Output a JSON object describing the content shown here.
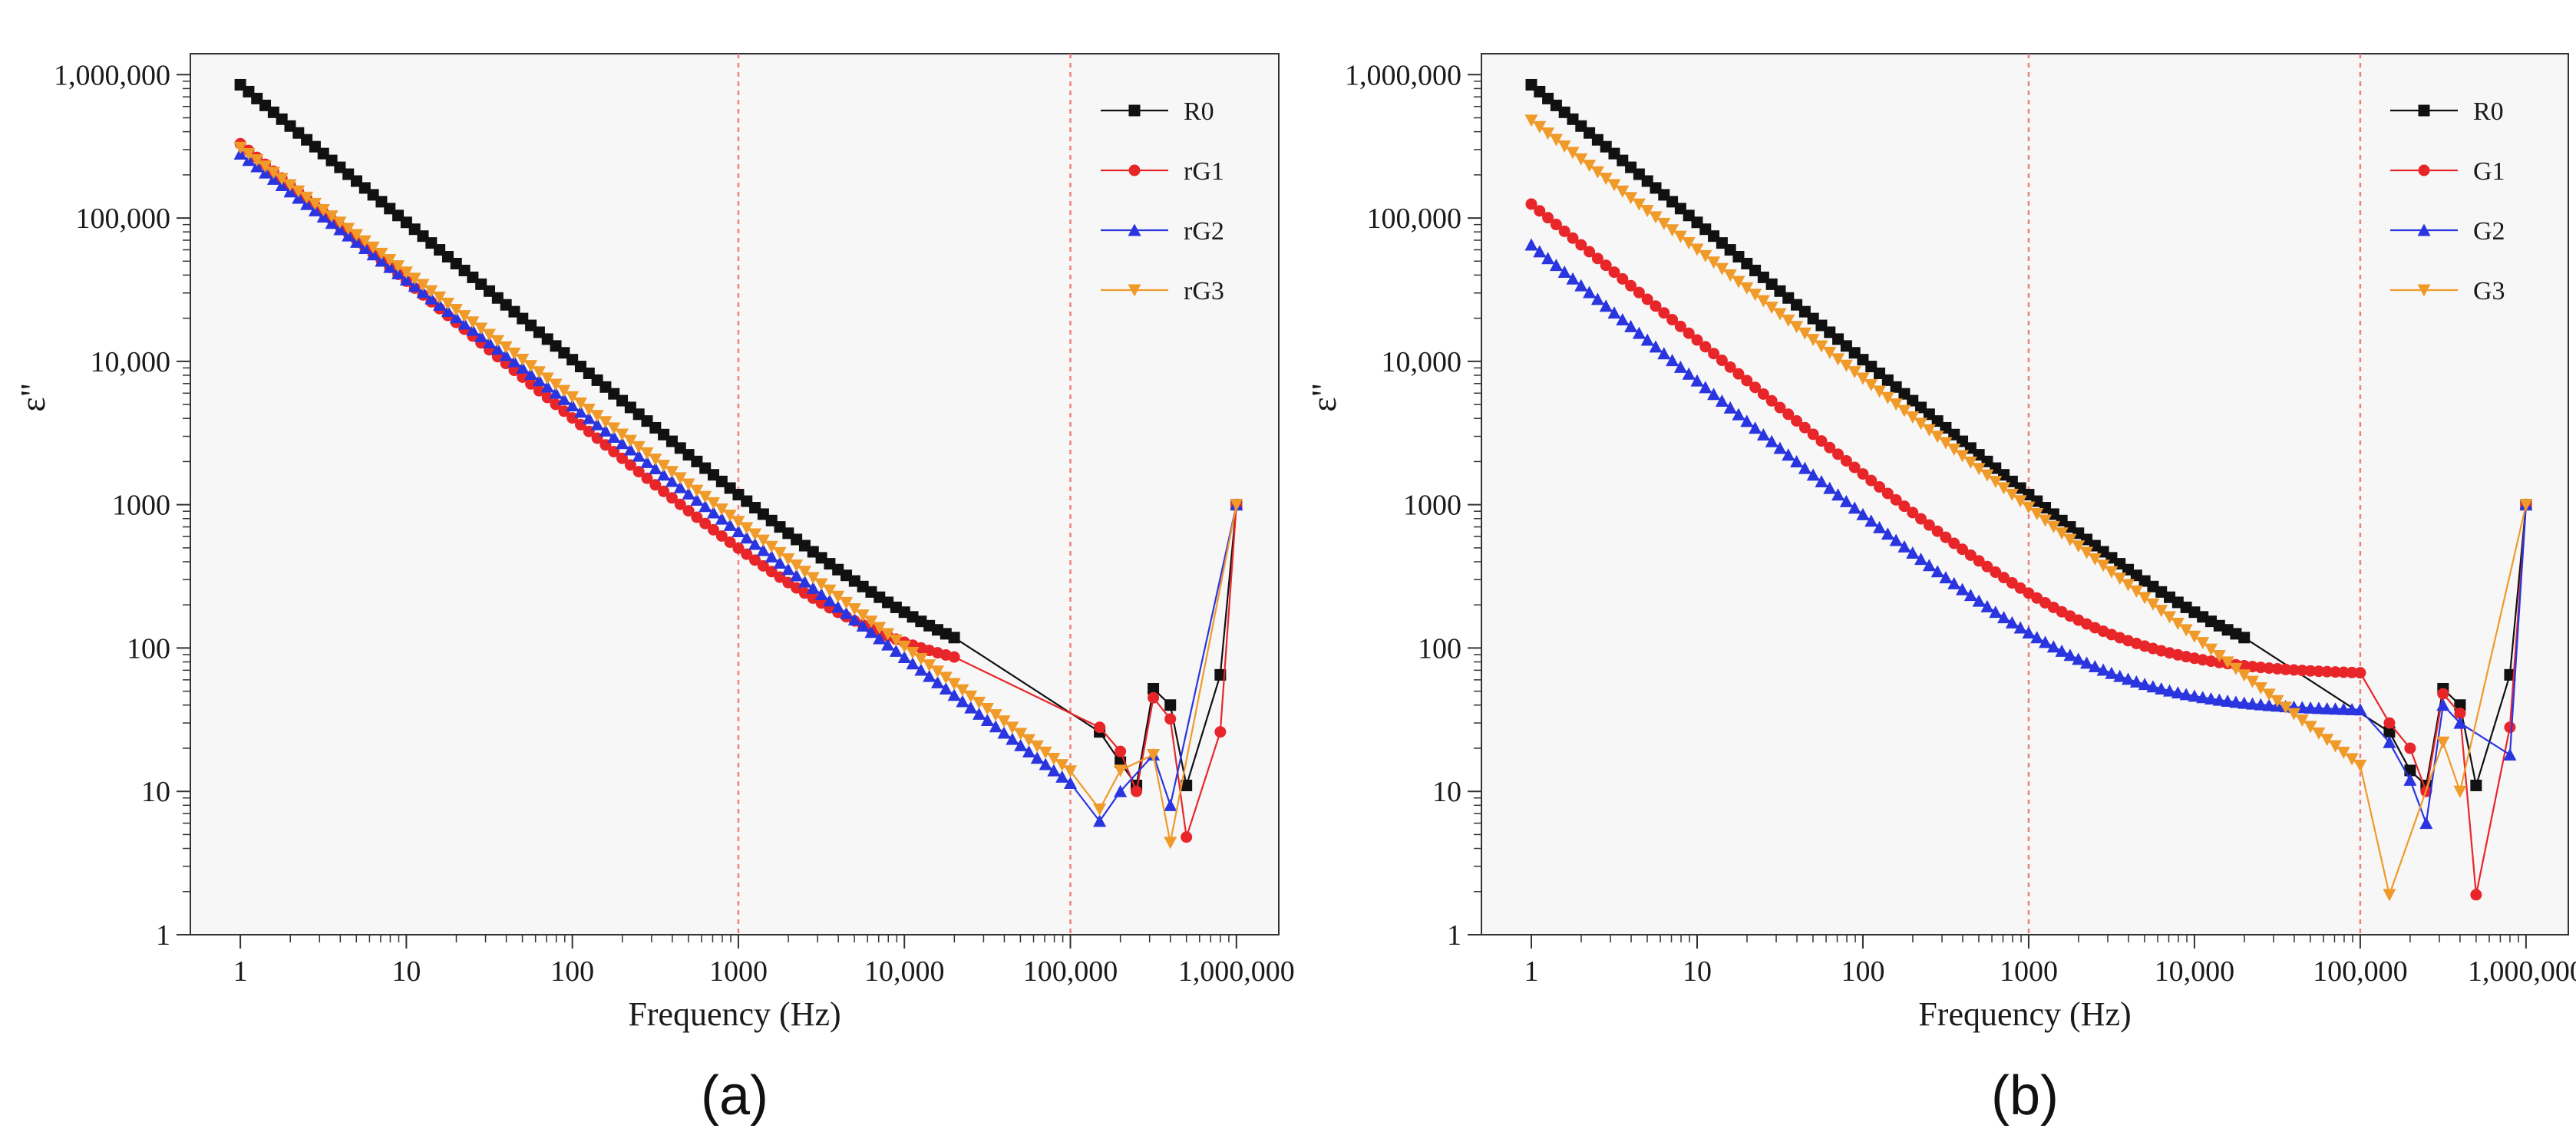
{
  "chart_data": [
    {
      "type": "line",
      "panel_label": "(a)",
      "xlabel": "Frequency  (Hz)",
      "ylabel": "ε\"",
      "xscale": "log",
      "yscale": "log",
      "xlim": [
        0.5,
        1800000
      ],
      "ylim": [
        1,
        1400000
      ],
      "x_tick_values": [
        1,
        10,
        100,
        1000,
        10000,
        100000,
        1000000
      ],
      "x_tick_labels": [
        "1",
        "10",
        "100",
        "1000",
        "10,000",
        "100,000",
        "1,000,000"
      ],
      "y_tick_values": [
        1,
        10,
        100,
        1000,
        10000,
        100000,
        1000000
      ],
      "y_tick_labels": [
        "1",
        "10",
        "100",
        "1000",
        "10,000",
        "100,000",
        "1,000,000"
      ],
      "reference_lines_x": [
        1000,
        100000
      ],
      "legend_position": "top-right",
      "series": [
        {
          "name": "R0",
          "color": "#111111",
          "marker": "square",
          "smooth_start": 1,
          "smooth_end": 20000,
          "smooth_y0": 850000,
          "smooth_slope": -0.96,
          "knee_x": 20000,
          "plateau": 55,
          "tail": [
            [
              150000,
              26
            ],
            [
              200000,
              16
            ],
            [
              250000,
              11
            ],
            [
              316000,
              52
            ],
            [
              400000,
              40
            ],
            [
              500000,
              11
            ],
            [
              800000,
              65
            ],
            [
              1000000,
              1000
            ]
          ]
        },
        {
          "name": "rG1",
          "color": "#e8262a",
          "marker": "circle",
          "smooth_start": 1,
          "smooth_end": 20000,
          "smooth_y0": 330000,
          "smooth_slope": -0.96,
          "knee_x": 2500,
          "plateau": 62,
          "tail": [
            [
              150000,
              28
            ],
            [
              200000,
              19
            ],
            [
              250000,
              10
            ],
            [
              316000,
              45
            ],
            [
              400000,
              32
            ],
            [
              500000,
              4.8
            ],
            [
              800000,
              26
            ],
            [
              1000000,
              1000
            ]
          ]
        },
        {
          "name": "rG2",
          "color": "#2a35e0",
          "marker": "triangle-up",
          "smooth_start": 1,
          "smooth_end": 100000,
          "smooth_y0": 280000,
          "smooth_slope": -0.878,
          "knee_x": 0,
          "plateau": 0,
          "tail": [
            [
              150000,
              6.2
            ],
            [
              200000,
              10
            ],
            [
              316000,
              18
            ],
            [
              400000,
              8
            ],
            [
              1000000,
              1000
            ]
          ]
        },
        {
          "name": "rG3",
          "color": "#f09a2a",
          "marker": "triangle-down",
          "smooth_start": 1,
          "smooth_end": 100000,
          "smooth_y0": 310000,
          "smooth_slope": -0.87,
          "knee_x": 0,
          "plateau": 0,
          "tail": [
            [
              150000,
              7.5
            ],
            [
              200000,
              14
            ],
            [
              316000,
              18
            ],
            [
              400000,
              4.4
            ],
            [
              1000000,
              1000
            ]
          ]
        }
      ]
    },
    {
      "type": "line",
      "panel_label": "(b)",
      "xlabel": "Frequency  (Hz)",
      "ylabel": "ε\"",
      "xscale": "log",
      "yscale": "log",
      "xlim": [
        0.5,
        1800000
      ],
      "ylim": [
        1,
        1400000
      ],
      "x_tick_values": [
        1,
        10,
        100,
        1000,
        10000,
        100000,
        1000000
      ],
      "x_tick_labels": [
        "1",
        "10",
        "100",
        "1000",
        "10,000",
        "100,000",
        "1,000,000"
      ],
      "y_tick_values": [
        1,
        10,
        100,
        1000,
        10000,
        100000,
        1000000
      ],
      "y_tick_labels": [
        "1",
        "10",
        "100",
        "1000",
        "10,000",
        "100,000",
        "1,000,000"
      ],
      "reference_lines_x": [
        1000,
        100000
      ],
      "legend_position": "top-right",
      "series": [
        {
          "name": "R0",
          "color": "#111111",
          "marker": "square",
          "smooth_start": 1,
          "smooth_end": 20000,
          "smooth_y0": 850000,
          "smooth_slope": -0.96,
          "knee_x": 20000,
          "plateau": 55,
          "tail": [
            [
              150000,
              26
            ],
            [
              200000,
              14
            ],
            [
              250000,
              11
            ],
            [
              316000,
              52
            ],
            [
              400000,
              40
            ],
            [
              500000,
              11
            ],
            [
              800000,
              65
            ],
            [
              1000000,
              1000
            ]
          ]
        },
        {
          "name": "G1",
          "color": "#e8262a",
          "marker": "circle",
          "smooth_start": 1,
          "smooth_end": 100000,
          "smooth_y0": 125000,
          "smooth_slope": -0.95,
          "knee_x": 400,
          "plateau": 65,
          "tail": [
            [
              150000,
              30
            ],
            [
              200000,
              20
            ],
            [
              250000,
              10
            ],
            [
              316000,
              48
            ],
            [
              400000,
              35
            ],
            [
              500000,
              1.9
            ],
            [
              800000,
              28
            ],
            [
              1000000,
              1000
            ]
          ]
        },
        {
          "name": "G2",
          "color": "#2a35e0",
          "marker": "triangle-up",
          "smooth_start": 1,
          "smooth_end": 100000,
          "smooth_y0": 65000,
          "smooth_slope": -0.95,
          "knee_x": 300,
          "plateau": 36,
          "tail": [
            [
              150000,
              22
            ],
            [
              200000,
              12
            ],
            [
              250000,
              6
            ],
            [
              316000,
              40
            ],
            [
              400000,
              30
            ],
            [
              800000,
              18
            ],
            [
              1000000,
              1000
            ]
          ]
        },
        {
          "name": "G3",
          "color": "#f09a2a",
          "marker": "triangle-down",
          "smooth_start": 1,
          "smooth_end": 100000,
          "smooth_y0": 480000,
          "smooth_slope": -0.9,
          "knee_x": 0,
          "plateau": 0,
          "tail": [
            [
              150000,
              1.9
            ],
            [
              316000,
              22
            ],
            [
              400000,
              10
            ],
            [
              1000000,
              1000
            ]
          ]
        }
      ]
    }
  ]
}
